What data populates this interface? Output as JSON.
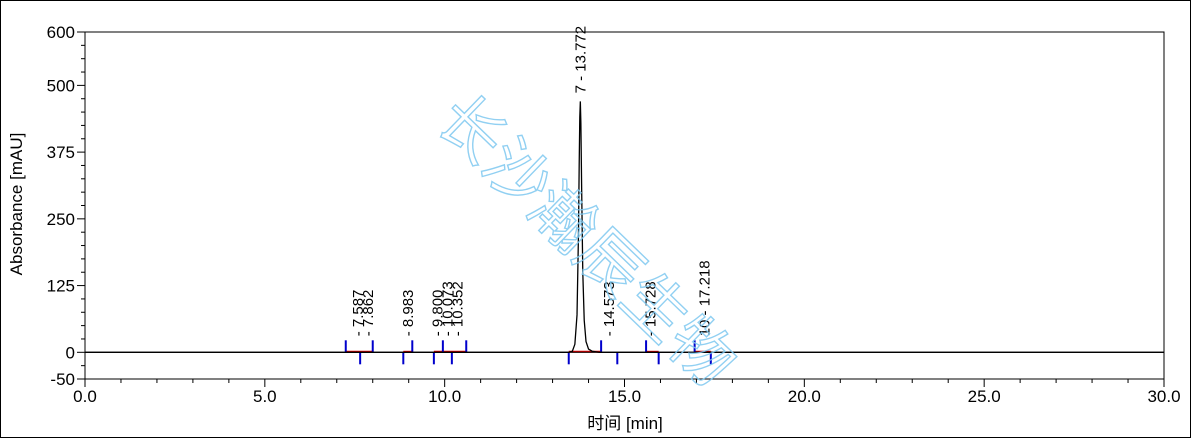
{
  "chart_data": {
    "type": "line",
    "title": "",
    "xlabel": "时间 [min]",
    "ylabel": "Absorbance [mAU]",
    "xlim": [
      0,
      30
    ],
    "ylim": [
      -50,
      600
    ],
    "x_ticks": [
      "0.0",
      "5.0",
      "10.0",
      "15.0",
      "20.0",
      "25.0",
      "30.0"
    ],
    "y_ticks": [
      "-50",
      "0",
      "125",
      "250",
      "375",
      "500",
      "600"
    ],
    "y_tick_values": [
      -50,
      0,
      125,
      250,
      375,
      500,
      600
    ],
    "x_tick_values": [
      0,
      5,
      10,
      15,
      20,
      25,
      30
    ],
    "grid": false,
    "series": [
      {
        "x": [
          0,
          13.45,
          13.55,
          13.62,
          13.68,
          13.72,
          13.74,
          13.757,
          13.772,
          13.787,
          13.81,
          13.84,
          13.88,
          13.93,
          14.0,
          14.1,
          14.3,
          30
        ],
        "y": [
          0,
          0,
          2,
          15,
          70,
          220,
          350,
          440,
          470,
          430,
          300,
          150,
          60,
          20,
          6,
          2,
          0,
          0
        ],
        "color": "#000000"
      }
    ],
    "peaks": [
      {
        "rt": 7.587,
        "label": "- 7.587"
      },
      {
        "rt": 7.862,
        "label": "- 7.862"
      },
      {
        "rt": 8.983,
        "label": "- 8.983"
      },
      {
        "rt": 9.8,
        "label": "- 9.800"
      },
      {
        "rt": 10.073,
        "label": "- 10.073"
      },
      {
        "rt": 10.352,
        "label": "- 10.352"
      },
      {
        "rt": 13.772,
        "label": "7 - 13.772"
      },
      {
        "rt": 14.573,
        "label": "- 14.573"
      },
      {
        "rt": 15.728,
        "label": "- 15.728"
      },
      {
        "rt": 17.218,
        "label": "10 - 17.218"
      }
    ],
    "integration_markers": [
      7.25,
      7.65,
      8.0,
      8.85,
      9.1,
      9.7,
      9.95,
      10.2,
      10.6,
      13.45,
      14.35,
      14.8,
      15.6,
      15.95,
      16.95,
      17.4
    ],
    "baseline_segments": [
      [
        7.25,
        8.0
      ],
      [
        8.85,
        9.1
      ],
      [
        9.7,
        10.6
      ],
      [
        13.45,
        14.35
      ],
      [
        15.6,
        15.95
      ],
      [
        16.95,
        17.4
      ]
    ],
    "colors": {
      "trace": "#000000",
      "baseline": "#e00000",
      "marker": "#0000cc",
      "watermark": "#7ec8f0"
    }
  },
  "watermark": {
    "text": "长沙瀚辰生物"
  }
}
